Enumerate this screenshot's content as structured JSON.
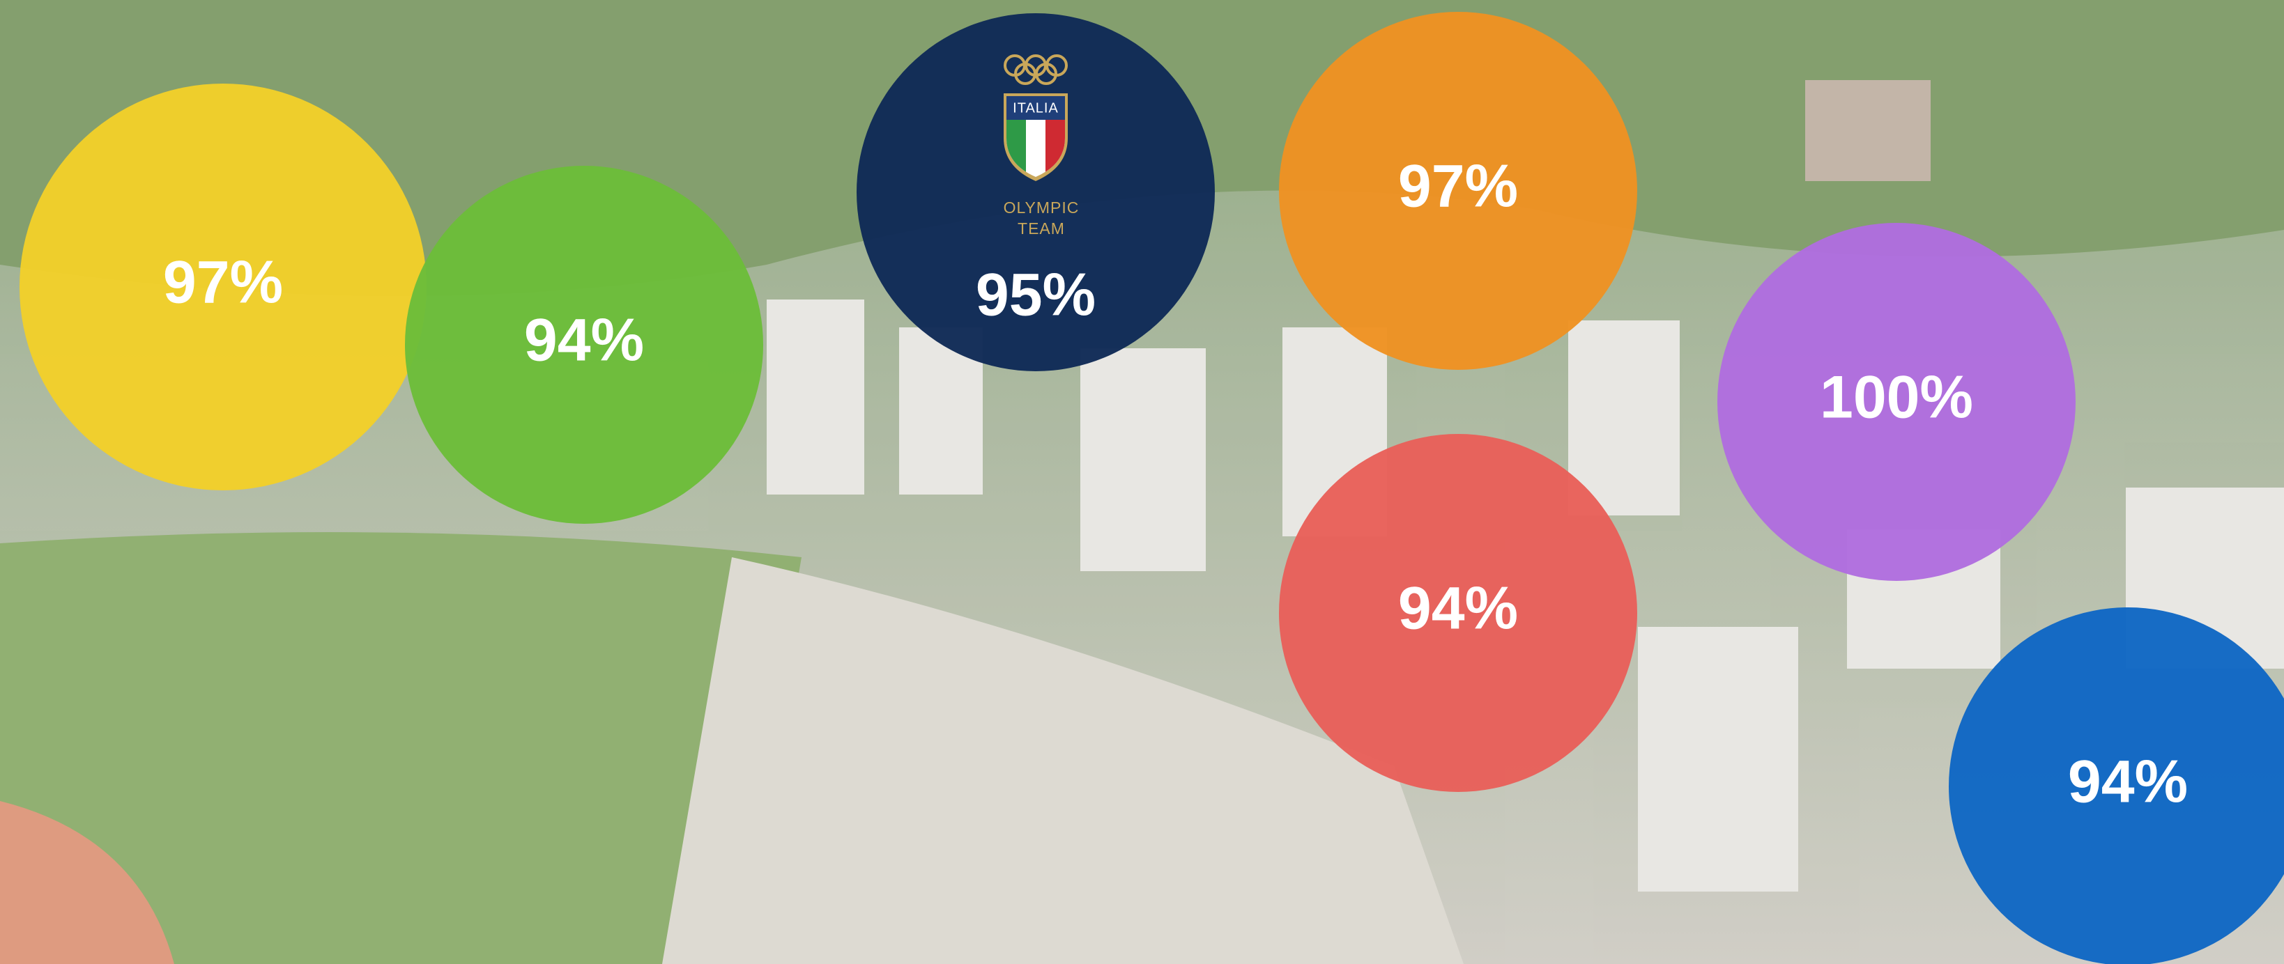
{
  "bubbles": [
    {
      "label": "97%",
      "color": "#f2cf2a"
    },
    {
      "label": "94%",
      "color": "#6cbd3a"
    },
    {
      "label": "95%",
      "color": "#0f2a57"
    },
    {
      "label": "97%",
      "color": "#ee9223"
    },
    {
      "label": "100%",
      "color": "#b06ddf"
    },
    {
      "label": "94%",
      "color": "#e8605a"
    },
    {
      "label": "94%",
      "color": "#0f67c4"
    }
  ],
  "logo": {
    "country": "ITALIA",
    "line1": "OLYMPIC",
    "line2": "TEAM"
  }
}
